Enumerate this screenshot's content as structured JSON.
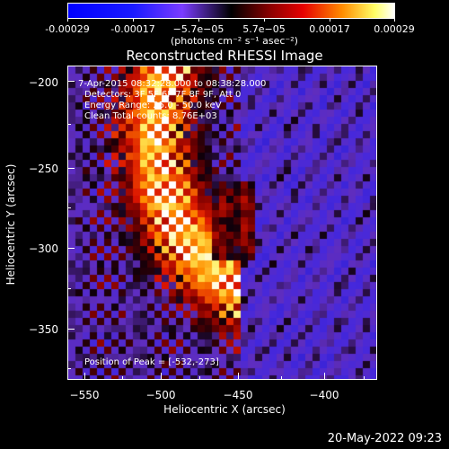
{
  "colorbar": {
    "ticks": [
      "-0.00029",
      "-0.00017",
      "−5.7e−05",
      "5.7e−05",
      "0.00017",
      "0.00029"
    ],
    "units": "(photons cm⁻² s⁻¹ asec⁻²)"
  },
  "title": "Reconstructed RHESSI Image",
  "annotations": {
    "time_range": "7-Apr-2015 08:32:28.000 to 08:38:28.000",
    "detectors": "Detectors: 3F 5F 6F 7F 8F 9F, Att 0",
    "energy_range": "Energy Range: 25.0 - 50.0 keV",
    "clean_counts": "Clean    Total counts: 8.76E+03",
    "peak_position": "Position of Peak = [-532,-273]"
  },
  "axes": {
    "xlabel": "Heliocentric X (arcsec)",
    "ylabel": "Heliocentric Y (arcsec)",
    "xticks": [
      "−550",
      "−500",
      "−450",
      "−400"
    ],
    "yticks": [
      "−200",
      "−250",
      "−300",
      "−350"
    ]
  },
  "timestamp": "20-May-2022 09:23"
}
